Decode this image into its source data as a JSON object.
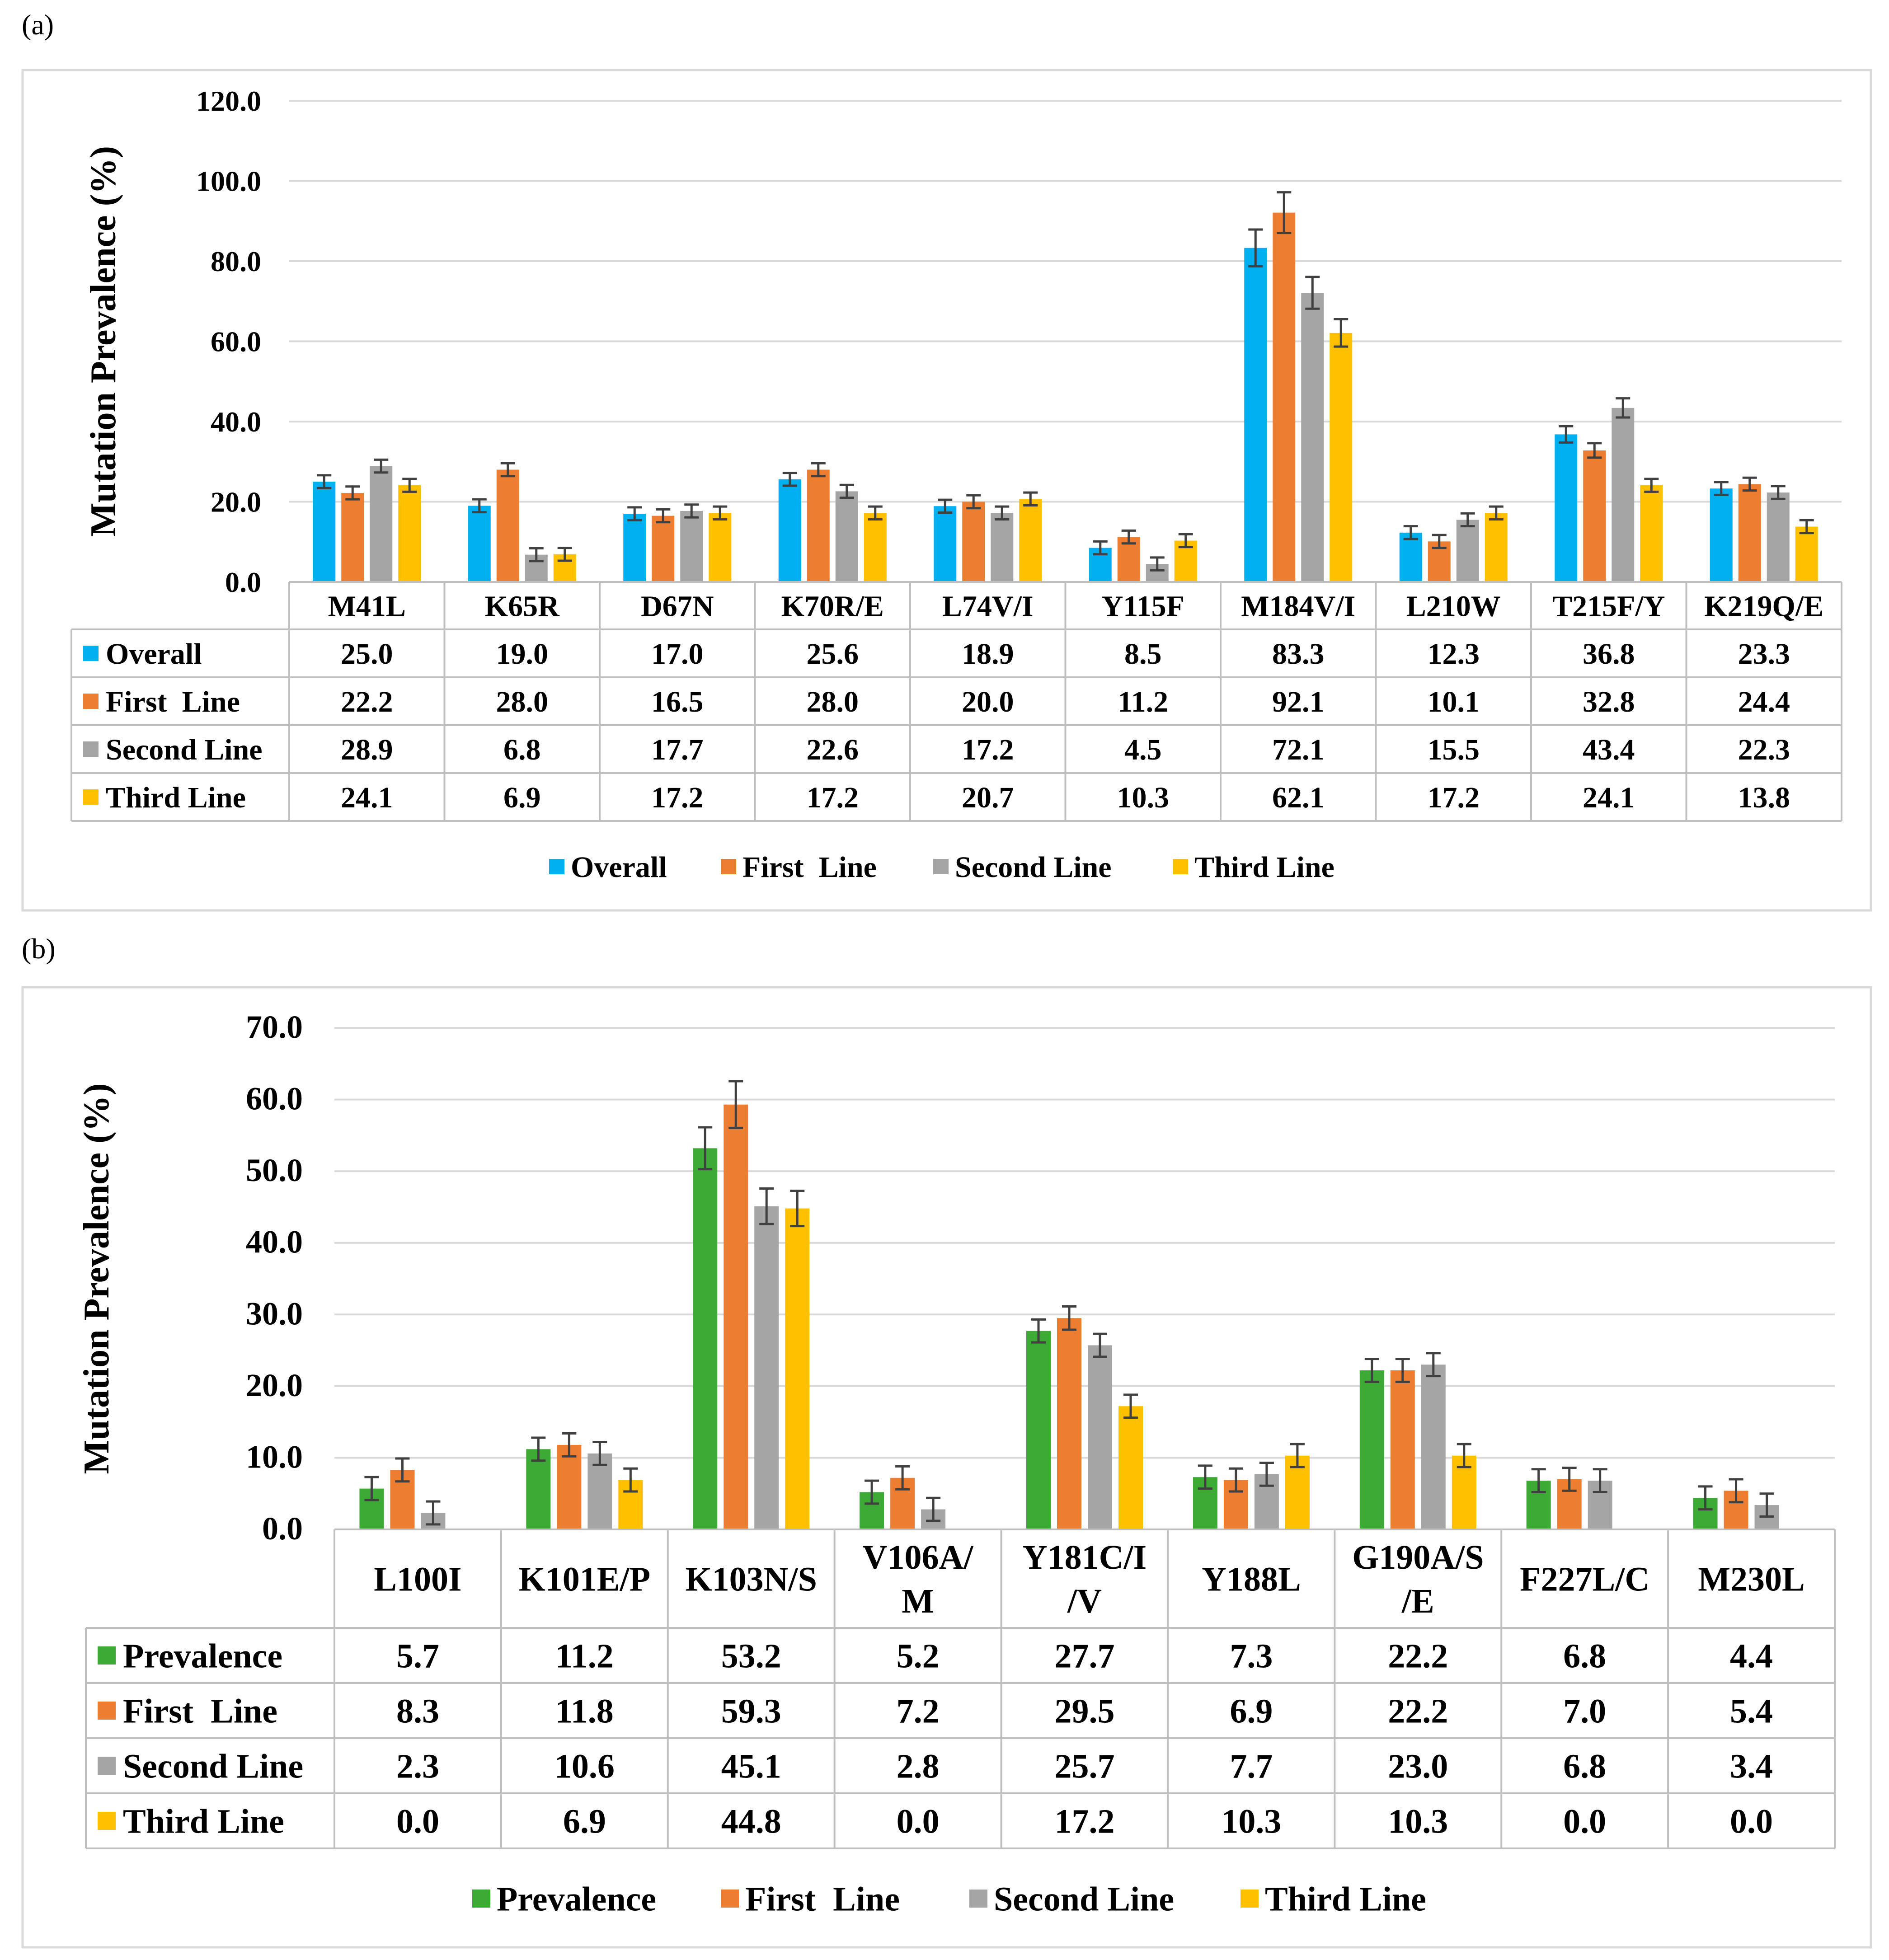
{
  "chart_data": [
    {
      "type": "bar",
      "panel_label": "(a)",
      "ylabel": "Mutation Prevalence (%)",
      "ylim": [
        0,
        120
      ],
      "yticks": [
        "0.0",
        "20.0",
        "40.0",
        "60.0",
        "80.0",
        "100.0",
        "120.0"
      ],
      "ytick_values": [
        0,
        20,
        40,
        60,
        80,
        100,
        120
      ],
      "grid": true,
      "error_bars": true,
      "legend_position": "bottom",
      "categories": [
        "M41L",
        "K65R",
        "D67N",
        "K70R/E",
        "L74V/I",
        "Y115F",
        "M184V/I",
        "L210W",
        "T215F/Y",
        "K219Q/E"
      ],
      "series": [
        {
          "name": "Overall",
          "color": "#00B0F0",
          "values": [
            25.0,
            19.0,
            17.0,
            25.6,
            18.9,
            8.5,
            83.3,
            12.3,
            36.8,
            23.3
          ],
          "labels": [
            "25.0",
            "19.0",
            "17.0",
            "25.6",
            "18.9",
            "8.5",
            "83.3",
            "12.3",
            "36.8",
            "23.3"
          ]
        },
        {
          "name": "First  Line",
          "color": "#ED7D31",
          "values": [
            22.2,
            28.0,
            16.5,
            28.0,
            20.0,
            11.2,
            92.1,
            10.1,
            32.8,
            24.4
          ],
          "labels": [
            "22.2",
            "28.0",
            "16.5",
            "28.0",
            "20.0",
            "11.2",
            "92.1",
            "10.1",
            "32.8",
            "24.4"
          ]
        },
        {
          "name": "Second Line",
          "color": "#A5A5A5",
          "values": [
            28.9,
            6.8,
            17.7,
            22.6,
            17.2,
            4.5,
            72.1,
            15.5,
            43.4,
            22.3
          ],
          "labels": [
            "28.9",
            "6.8",
            "17.7",
            "22.6",
            "17.2",
            "4.5",
            "72.1",
            "15.5",
            "43.4",
            "22.3"
          ]
        },
        {
          "name": "Third Line",
          "color": "#FFC000",
          "values": [
            24.1,
            6.9,
            17.2,
            17.2,
            20.7,
            10.3,
            62.1,
            17.2,
            24.1,
            13.8
          ],
          "labels": [
            "24.1",
            "6.9",
            "17.2",
            "17.2",
            "20.7",
            "10.3",
            "62.1",
            "17.2",
            "24.1",
            "13.8"
          ]
        }
      ]
    },
    {
      "type": "bar",
      "panel_label": "(b)",
      "ylabel": "Mutation Prevalence (%)",
      "ylim": [
        0,
        70
      ],
      "yticks": [
        "0.0",
        "10.0",
        "20.0",
        "30.0",
        "40.0",
        "50.0",
        "60.0",
        "70.0"
      ],
      "ytick_values": [
        0,
        10,
        20,
        30,
        40,
        50,
        60,
        70
      ],
      "grid": true,
      "error_bars": true,
      "legend_position": "bottom",
      "categories": [
        "L100I",
        "K101E/P",
        "K103N/S",
        "V106A/\nM",
        "Y181C/I\n/V",
        "Y188L",
        "G190A/S\n/E",
        "F227L/C",
        "M230L"
      ],
      "series": [
        {
          "name": "Prevalence",
          "color": "#3DAA35",
          "values": [
            5.7,
            11.2,
            53.2,
            5.2,
            27.7,
            7.3,
            22.2,
            6.8,
            4.4
          ],
          "labels": [
            "5.7",
            "11.2",
            "53.2",
            "5.2",
            "27.7",
            "7.3",
            "22.2",
            "6.8",
            "4.4"
          ]
        },
        {
          "name": "First  Line",
          "color": "#ED7D31",
          "values": [
            8.3,
            11.8,
            59.3,
            7.2,
            29.5,
            6.9,
            22.2,
            7.0,
            5.4
          ],
          "labels": [
            "8.3",
            "11.8",
            "59.3",
            "7.2",
            "29.5",
            "6.9",
            "22.2",
            "7.0",
            "5.4"
          ]
        },
        {
          "name": "Second Line",
          "color": "#A5A5A5",
          "values": [
            2.3,
            10.6,
            45.1,
            2.8,
            25.7,
            7.7,
            23.0,
            6.8,
            3.4
          ],
          "labels": [
            "2.3",
            "10.6",
            "45.1",
            "2.8",
            "25.7",
            "7.7",
            "23.0",
            "6.8",
            "3.4"
          ]
        },
        {
          "name": "Third Line",
          "color": "#FFC000",
          "values": [
            0.0,
            6.9,
            44.8,
            0.0,
            17.2,
            10.3,
            10.3,
            0.0,
            0.0
          ],
          "labels": [
            "0.0",
            "6.9",
            "44.8",
            "0.0",
            "17.2",
            "10.3",
            "10.3",
            "0.0",
            "0.0"
          ]
        }
      ]
    }
  ]
}
